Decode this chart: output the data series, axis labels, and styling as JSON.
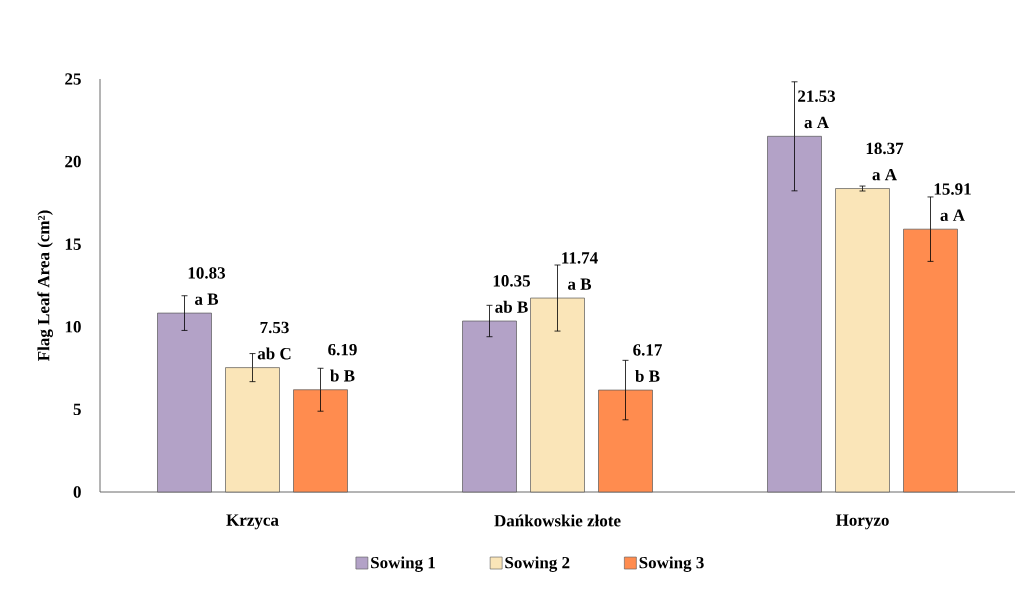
{
  "chart_data": {
    "type": "bar",
    "ylabel": "Flag Leaf Area (cm²)",
    "categories": [
      "Krzyca",
      "Dańkowskie złote",
      "Horyzo"
    ],
    "series": [
      {
        "name": "Sowing 1",
        "color": "#b3a2c7",
        "values": [
          10.83,
          10.35,
          21.53
        ],
        "errors": [
          1.05,
          0.95,
          3.3
        ]
      },
      {
        "name": "Sowing 2",
        "color": "#fae5b8",
        "values": [
          7.53,
          11.74,
          18.37
        ],
        "errors": [
          0.85,
          2.0,
          0.15
        ]
      },
      {
        "name": "Sowing 3",
        "color": "#ff8c4f",
        "values": [
          6.19,
          6.17,
          15.91
        ],
        "errors": [
          1.3,
          1.8,
          1.95
        ]
      }
    ],
    "ylim": [
      0,
      25
    ],
    "yticks": [
      0,
      5,
      10,
      15,
      20,
      25
    ],
    "grid": false,
    "legend": "bottom",
    "data_labels": true,
    "annotations": [
      "a B",
      "ab C",
      "b B",
      "ab B",
      "a B",
      "b B",
      "a A",
      "a A",
      "a A"
    ]
  }
}
